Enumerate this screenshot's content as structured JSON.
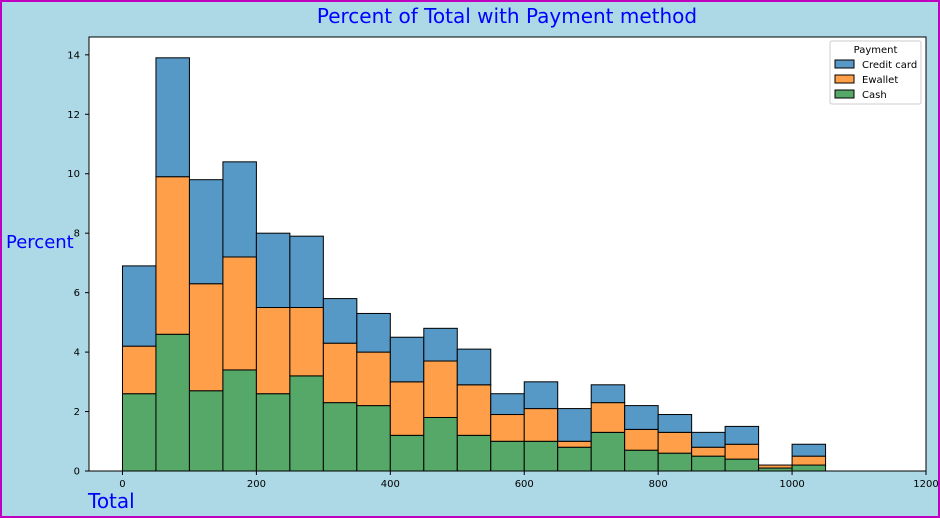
{
  "chart_data": {
    "type": "bar",
    "title": "Percent of Total with Payment method",
    "xlabel": "Total",
    "ylabel": "Percent",
    "stacked": true,
    "bin_width": 50,
    "xlim": [
      -50,
      1200
    ],
    "ylim": [
      0,
      14.6
    ],
    "xticks": [
      0,
      200,
      400,
      600,
      800,
      1000,
      1200
    ],
    "yticks": [
      0,
      2,
      4,
      6,
      8,
      10,
      12,
      14
    ],
    "grid": false,
    "legend": {
      "title": "Payment",
      "position": "top-right"
    },
    "bin_starts": [
      0,
      50,
      100,
      150,
      200,
      250,
      300,
      350,
      400,
      450,
      500,
      550,
      600,
      650,
      700,
      750,
      800,
      850,
      900,
      950,
      1000
    ],
    "series": [
      {
        "name": "Cash",
        "color": "#55a868",
        "values": [
          2.6,
          4.6,
          2.7,
          3.4,
          2.6,
          3.2,
          2.3,
          2.2,
          1.2,
          1.8,
          1.2,
          1.0,
          1.0,
          0.8,
          1.3,
          0.7,
          0.6,
          0.5,
          0.4,
          0.1,
          0.2
        ]
      },
      {
        "name": "Ewallet",
        "color": "#ff9f4a",
        "values": [
          1.6,
          5.3,
          3.6,
          3.8,
          2.9,
          2.3,
          2.0,
          1.8,
          1.8,
          1.9,
          1.7,
          0.9,
          1.1,
          0.2,
          1.0,
          0.7,
          0.7,
          0.3,
          0.5,
          0.1,
          0.3
        ]
      },
      {
        "name": "Credit card",
        "color": "#5698c6",
        "values": [
          2.7,
          4.0,
          3.5,
          3.2,
          2.5,
          2.4,
          1.5,
          1.3,
          1.5,
          1.1,
          1.2,
          0.7,
          0.9,
          1.1,
          0.6,
          0.8,
          0.6,
          0.5,
          0.6,
          0.0,
          0.4
        ]
      }
    ],
    "legend_order": [
      "Credit card",
      "Ewallet",
      "Cash"
    ]
  }
}
